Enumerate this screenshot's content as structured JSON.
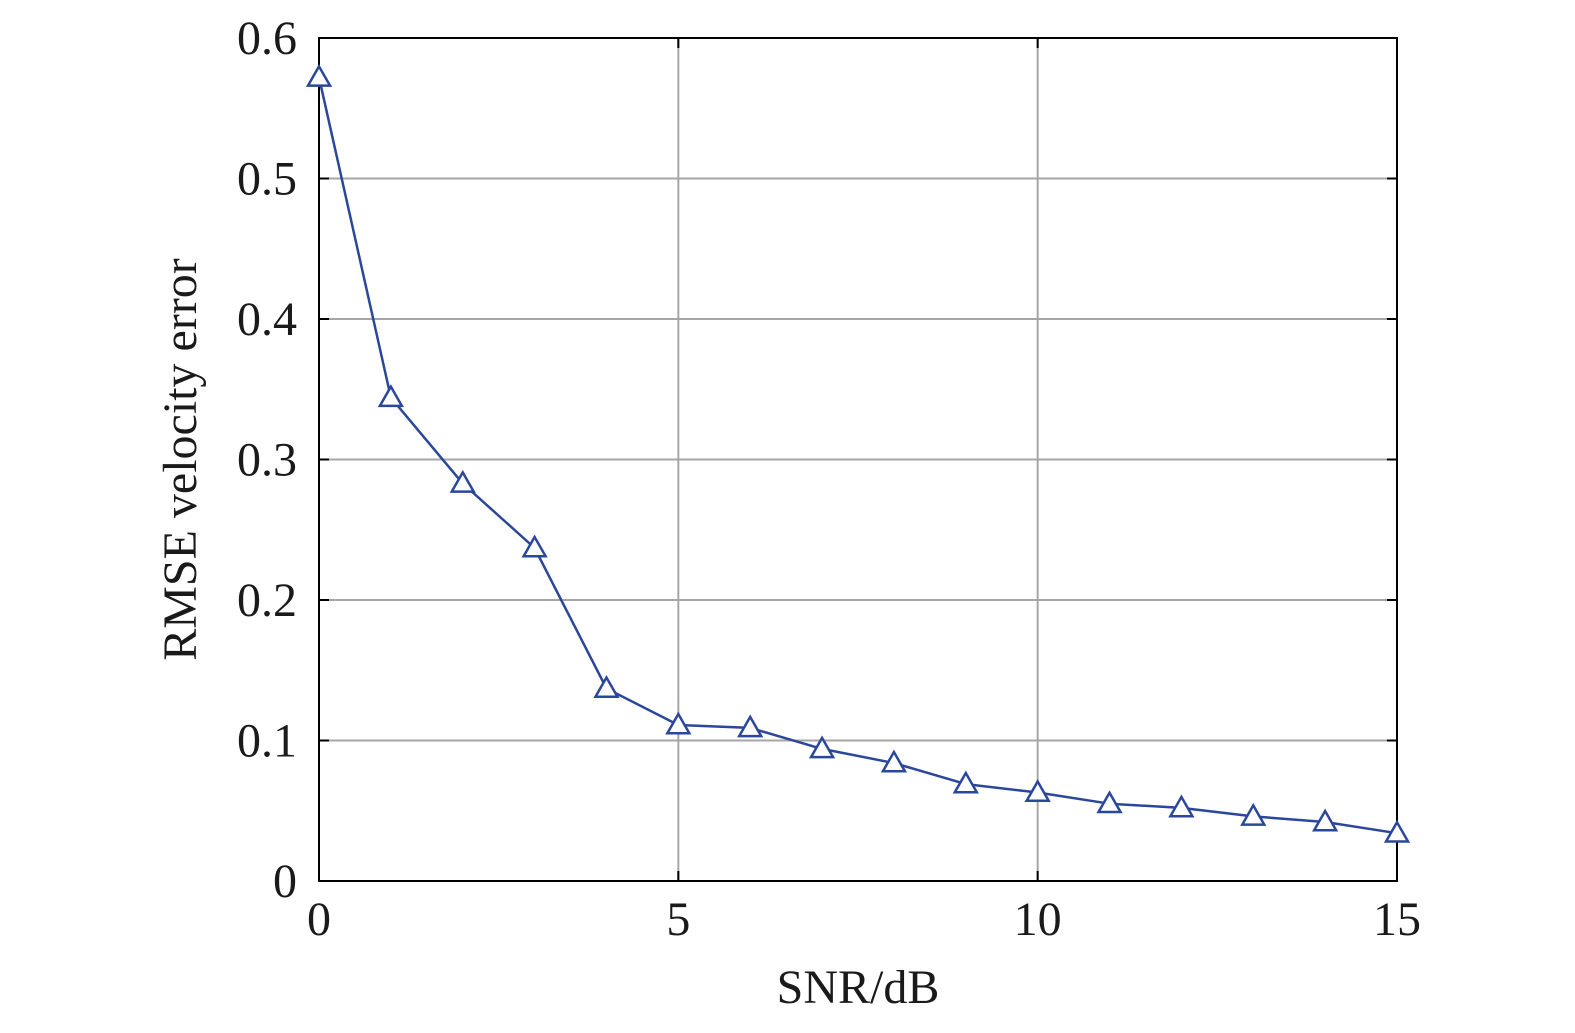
{
  "chart_data": {
    "type": "line",
    "title": "",
    "xlabel": "SNR/dB",
    "ylabel": "RMSE velocity error",
    "xlim": [
      0,
      15
    ],
    "ylim": [
      0,
      0.6
    ],
    "xticks": [
      0,
      5,
      10,
      15
    ],
    "xtick_labels": [
      "0",
      "5",
      "10",
      "15"
    ],
    "yticks": [
      0,
      0.1,
      0.2,
      0.3,
      0.4,
      0.5,
      0.6
    ],
    "ytick_labels": [
      "0",
      "0.1",
      "0.2",
      "0.3",
      "0.4",
      "0.5",
      "0.6"
    ],
    "grid": true,
    "series": [
      {
        "marker": "triangle-open",
        "color": "#2b479b",
        "x": [
          0,
          1,
          2,
          3,
          4,
          5,
          6,
          7,
          8,
          9,
          10,
          11,
          12,
          13,
          14,
          15
        ],
        "y": [
          0.572,
          0.344,
          0.283,
          0.237,
          0.137,
          0.111,
          0.109,
          0.094,
          0.084,
          0.069,
          0.063,
          0.055,
          0.052,
          0.046,
          0.042,
          0.034
        ]
      }
    ]
  }
}
